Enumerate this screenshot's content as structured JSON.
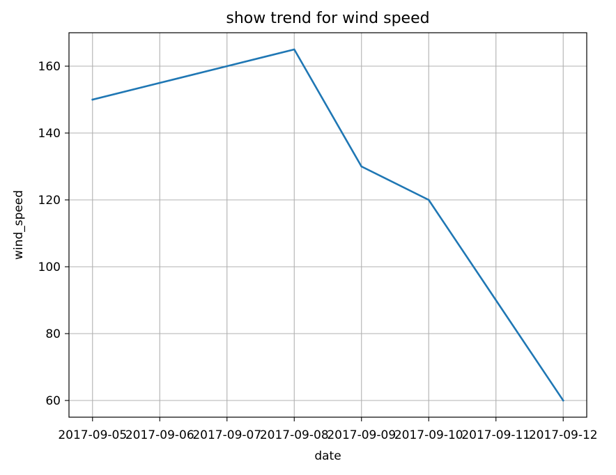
{
  "chart_data": {
    "type": "line",
    "title": "show trend for wind speed",
    "xlabel": "date",
    "ylabel": "wind_speed",
    "x": [
      "2017-09-05",
      "2017-09-06",
      "2017-09-07",
      "2017-09-08",
      "2017-09-09",
      "2017-09-10",
      "2017-09-11",
      "2017-09-12"
    ],
    "series": [
      {
        "values": [
          150,
          155,
          160,
          165,
          130,
          120,
          90,
          60
        ],
        "color": "#1f77b4"
      }
    ],
    "yticks": [
      60,
      80,
      100,
      120,
      140,
      160
    ],
    "ylim": [
      55,
      170
    ],
    "grid": true,
    "legend": "none"
  }
}
